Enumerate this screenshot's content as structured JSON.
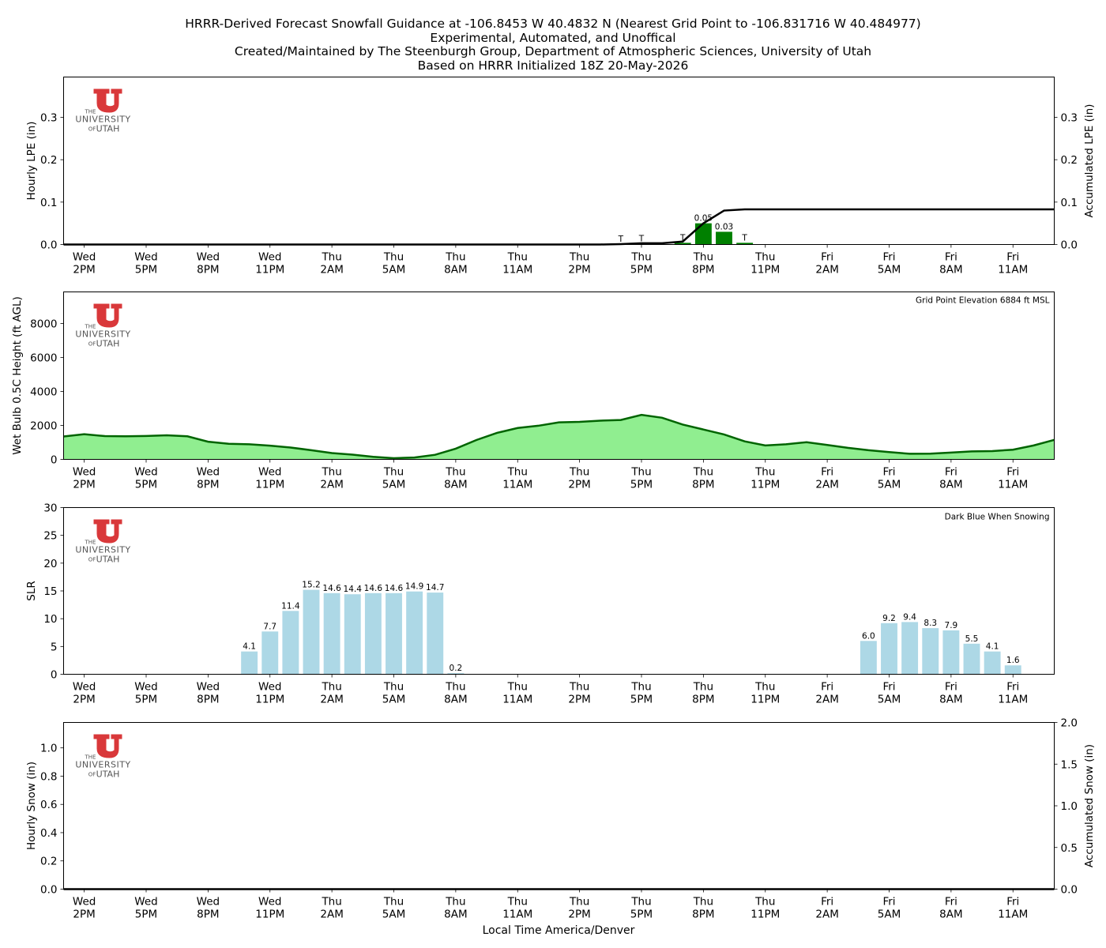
{
  "title_lines": [
    "HRRR-Derived Forecast Snowfall Guidance at -106.8453 W 40.4832 N (Nearest Grid Point to -106.831716 W 40.484977)",
    "Experimental, Automated, and Unoffical",
    "Created/Maintained by The Steenburgh Group, Department of Atmospheric Sciences, University of Utah",
    "Based on HRRR Initialized 18Z 20-May-2026"
  ],
  "logo": {
    "line1": "THE",
    "line2": "UNIVERSITY",
    "line3_small": "OF",
    "line3": "UTAH",
    "color": "#d9383a"
  },
  "x_axis": {
    "tick_labels": [
      [
        "Wed",
        "2PM"
      ],
      [
        "Wed",
        "5PM"
      ],
      [
        "Wed",
        "8PM"
      ],
      [
        "Wed",
        "11PM"
      ],
      [
        "Thu",
        "2AM"
      ],
      [
        "Thu",
        "5AM"
      ],
      [
        "Thu",
        "8AM"
      ],
      [
        "Thu",
        "11AM"
      ],
      [
        "Thu",
        "2PM"
      ],
      [
        "Thu",
        "5PM"
      ],
      [
        "Thu",
        "8PM"
      ],
      [
        "Thu",
        "11PM"
      ],
      [
        "Fri",
        "2AM"
      ],
      [
        "Fri",
        "5AM"
      ],
      [
        "Fri",
        "8AM"
      ],
      [
        "Fri",
        "11AM"
      ]
    ],
    "xlabel": "Local Time America/Denver"
  },
  "chart_data": [
    {
      "type": "bar",
      "name": "lpe",
      "ylabel": "Hourly LPE (in)",
      "ylabel_right": "Accumulated LPE (in)",
      "ylim": [
        0,
        0.395
      ],
      "yticks": [
        "0.0",
        "0.1",
        "0.2",
        "0.3"
      ],
      "ytick_values": [
        0,
        0.1,
        0.2,
        0.3
      ],
      "colors": {
        "bar": "#008000",
        "accum": "#000000"
      },
      "bars": [
        {
          "hour": 26,
          "value": 0.001,
          "label": "T"
        },
        {
          "hour": 27,
          "value": 0.002,
          "label": "T"
        },
        {
          "hour": 29,
          "value": 0.004,
          "label": "T"
        },
        {
          "hour": 30,
          "value": 0.05,
          "label": "0.05"
        },
        {
          "hour": 31,
          "value": 0.03,
          "label": "0.03"
        },
        {
          "hour": 32,
          "value": 0.004,
          "label": "T"
        }
      ],
      "accumulated": {
        "hours": [
          0,
          25,
          26,
          27,
          28,
          29,
          30,
          31,
          32,
          33,
          47
        ],
        "values": [
          0,
          0,
          0.001,
          0.003,
          0.003,
          0.007,
          0.05,
          0.08,
          0.083,
          0.083,
          0.083
        ]
      }
    },
    {
      "type": "area",
      "name": "wetbulb",
      "ylabel": "Wet Bulb 0.5C Height (ft AGL)",
      "annotation": "Grid Point Elevation 6884 ft MSL",
      "ylim": [
        0,
        9860
      ],
      "yticks": [
        "0",
        "2000",
        "4000",
        "6000",
        "8000"
      ],
      "ytick_values": [
        0,
        2000,
        4000,
        6000,
        8000
      ],
      "colors": {
        "fill": "#90ee90",
        "line": "#006400"
      },
      "hours": [
        -1,
        0,
        1,
        2,
        3,
        4,
        5,
        6,
        7,
        8,
        9,
        10,
        11,
        12,
        13,
        14,
        15,
        16,
        17,
        18,
        19,
        20,
        21,
        22,
        23,
        24,
        25,
        26,
        27,
        28,
        29,
        30,
        31,
        32,
        33,
        34,
        35,
        36,
        37,
        38,
        39,
        40,
        41,
        42,
        43,
        44,
        45,
        46,
        47
      ],
      "values": [
        1350,
        1480,
        1370,
        1360,
        1380,
        1420,
        1360,
        1040,
        920,
        890,
        810,
        700,
        540,
        370,
        280,
        150,
        70,
        110,
        270,
        630,
        1140,
        1560,
        1850,
        1980,
        2180,
        2210,
        2280,
        2320,
        2620,
        2450,
        2050,
        1760,
        1470,
        1060,
        820,
        890,
        1010,
        850,
        680,
        540,
        430,
        330,
        340,
        400,
        470,
        490,
        570,
        820,
        1150
      ]
    },
    {
      "type": "bar",
      "name": "slr",
      "ylabel": "SLR",
      "annotation": "Dark Blue When Snowing",
      "ylim": [
        0,
        30
      ],
      "yticks": [
        "0",
        "5",
        "10",
        "15",
        "20",
        "25",
        "30"
      ],
      "ytick_values": [
        0,
        5,
        10,
        15,
        20,
        25,
        30
      ],
      "colors": {
        "bar": "#add8e6"
      },
      "bars": [
        {
          "hour": 8,
          "value": 4.1,
          "label": "4.1"
        },
        {
          "hour": 9,
          "value": 7.7,
          "label": "7.7"
        },
        {
          "hour": 10,
          "value": 11.4,
          "label": "11.4"
        },
        {
          "hour": 11,
          "value": 15.2,
          "label": "15.2"
        },
        {
          "hour": 12,
          "value": 14.6,
          "label": "14.6"
        },
        {
          "hour": 13,
          "value": 14.4,
          "label": "14.4"
        },
        {
          "hour": 14,
          "value": 14.6,
          "label": "14.6"
        },
        {
          "hour": 15,
          "value": 14.6,
          "label": "14.6"
        },
        {
          "hour": 16,
          "value": 14.9,
          "label": "14.9"
        },
        {
          "hour": 17,
          "value": 14.7,
          "label": "14.7"
        },
        {
          "hour": 18,
          "value": 0.2,
          "label": "0.2"
        },
        {
          "hour": 38,
          "value": 6.0,
          "label": "6.0"
        },
        {
          "hour": 39,
          "value": 9.2,
          "label": "9.2"
        },
        {
          "hour": 40,
          "value": 9.4,
          "label": "9.4"
        },
        {
          "hour": 41,
          "value": 8.3,
          "label": "8.3"
        },
        {
          "hour": 42,
          "value": 7.9,
          "label": "7.9"
        },
        {
          "hour": 43,
          "value": 5.5,
          "label": "5.5"
        },
        {
          "hour": 44,
          "value": 4.1,
          "label": "4.1"
        },
        {
          "hour": 45,
          "value": 1.6,
          "label": "1.6"
        }
      ]
    },
    {
      "type": "bar",
      "name": "snow",
      "ylabel": "Hourly Snow (in)",
      "ylabel_right": "Accumulated Snow (in)",
      "ylim": [
        0,
        1.18
      ],
      "yticks": [
        "0.0",
        "0.2",
        "0.4",
        "0.6",
        "0.8",
        "1.0"
      ],
      "ytick_values": [
        0,
        0.2,
        0.4,
        0.6,
        0.8,
        1.0
      ],
      "right_ylim": [
        0,
        2.0
      ],
      "right_yticks": [
        "0.0",
        "0.5",
        "1.0",
        "1.5",
        "2.0"
      ],
      "right_ytick_values": [
        0,
        0.5,
        1.0,
        1.5,
        2.0
      ],
      "colors": {
        "accum": "#000000"
      },
      "bars": [],
      "accumulated": {
        "hours": [
          -1,
          47
        ],
        "values": [
          0,
          0
        ]
      }
    }
  ],
  "lpe_right_yticks": [
    "0.0",
    "0.1",
    "0.2",
    "0.3"
  ]
}
